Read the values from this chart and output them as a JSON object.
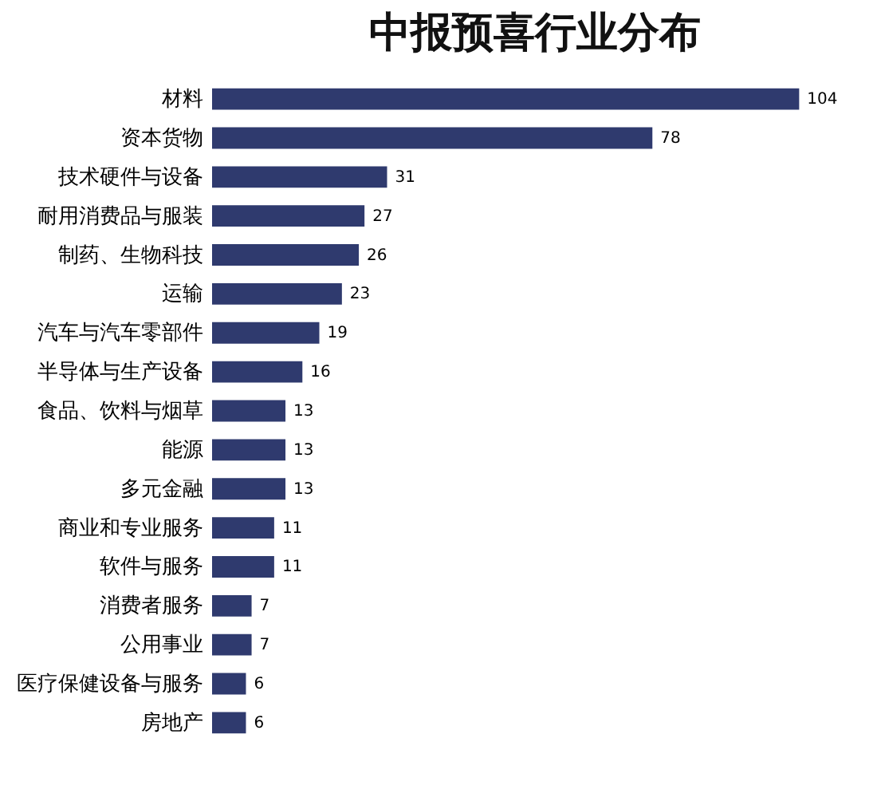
{
  "chart_data": {
    "type": "bar",
    "title": "中报预喜行业分布",
    "orientation": "horizontal",
    "data_labels": true,
    "color": "#2f3a6e",
    "categories": [
      "材料",
      "资本货物",
      "技术硬件与设备",
      "耐用消费品与服装",
      "制药、生物科技",
      "运输",
      "汽车与汽车零部件",
      "半导体与生产设备",
      "食品、饮料与烟草",
      "能源",
      "多元金融",
      "商业和专业服务",
      "软件与服务",
      "消费者服务",
      "公用事业",
      "医疗保健设备与服务",
      "房地产"
    ],
    "values": [
      104,
      78,
      31,
      27,
      26,
      23,
      19,
      16,
      13,
      13,
      13,
      11,
      11,
      7,
      7,
      6,
      6
    ]
  }
}
